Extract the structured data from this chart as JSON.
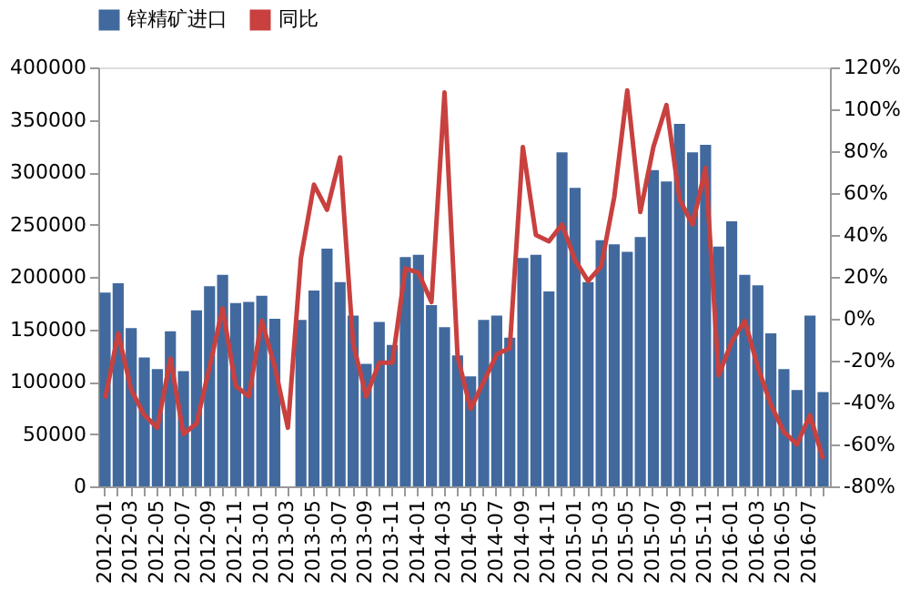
{
  "chart_data": {
    "type": "bar",
    "categories": [
      "2012-01",
      null,
      "2012-03",
      null,
      "2012-05",
      null,
      "2012-07",
      null,
      "2012-09",
      null,
      "2012-11",
      null,
      "2013-01",
      null,
      "2013-03",
      null,
      "2013-05",
      null,
      "2013-07",
      null,
      "2013-09",
      null,
      "2013-11",
      null,
      "2014-01",
      null,
      "2014-03",
      null,
      "2014-05",
      null,
      "2014-07",
      null,
      "2014-09",
      null,
      "2014-11",
      null,
      "2015-01",
      null,
      "2015-03",
      null,
      "2015-05",
      null,
      "2015-07",
      null,
      "2015-09",
      null,
      "2015-11",
      null,
      "2016-01",
      null,
      "2016-03",
      null,
      "2016-05",
      null,
      "2016-07",
      null
    ],
    "series": [
      {
        "name": "锌精矿进口",
        "color": "#41699e",
        "values": [
          185000,
          194000,
          151000,
          123000,
          112000,
          148000,
          110000,
          168000,
          191000,
          202000,
          175000,
          176000,
          182000,
          160000,
          null,
          159000,
          187000,
          227000,
          195000,
          163000,
          117000,
          157000,
          135000,
          219000,
          221000,
          173000,
          152000,
          125000,
          105000,
          159000,
          163000,
          142000,
          218000,
          221000,
          186000,
          319000,
          285000,
          195000,
          235000,
          231000,
          224000,
          238000,
          302000,
          291000,
          346000,
          319000,
          326000,
          229000,
          253000,
          202000,
          192000,
          146000,
          112000,
          92000,
          163000,
          90000
        ]
      },
      {
        "name": "同比",
        "type": "line",
        "axis": "y2",
        "color": "#c8413f",
        "values": [
          -38,
          -7,
          -34,
          -46,
          -52,
          -19,
          -55,
          -50,
          -23,
          5,
          -32,
          -37,
          -1,
          -23,
          -52,
          29,
          64,
          52,
          77,
          -12,
          -37,
          -21,
          -21,
          24,
          22,
          8,
          108,
          -18,
          -43,
          -30,
          -17,
          -14,
          82,
          40,
          37,
          45,
          28,
          18,
          25,
          58,
          109,
          51,
          82,
          102,
          57,
          45,
          72,
          -27,
          -11,
          -1,
          -23,
          -41,
          -54,
          -60,
          -46,
          -67
        ]
      }
    ],
    "ylim": [
      0,
      400000
    ],
    "yticks": [
      0,
      50000,
      100000,
      150000,
      200000,
      250000,
      300000,
      350000,
      400000
    ],
    "y2lim": [
      -80,
      120
    ],
    "y2ticks": [
      {
        "value": -80,
        "label": "-80%"
      },
      {
        "value": -60,
        "label": "-60%"
      },
      {
        "value": -40,
        "label": "-40%"
      },
      {
        "value": -20,
        "label": "-20%"
      },
      {
        "value": 0,
        "label": "0%"
      },
      {
        "value": 20,
        "label": "20%"
      },
      {
        "value": 40,
        "label": "40%"
      },
      {
        "value": 60,
        "label": "60%"
      },
      {
        "value": 80,
        "label": "80%"
      },
      {
        "value": 100,
        "label": "100%"
      },
      {
        "value": 120,
        "label": "120%"
      }
    ],
    "legend": "top",
    "grid": false
  }
}
